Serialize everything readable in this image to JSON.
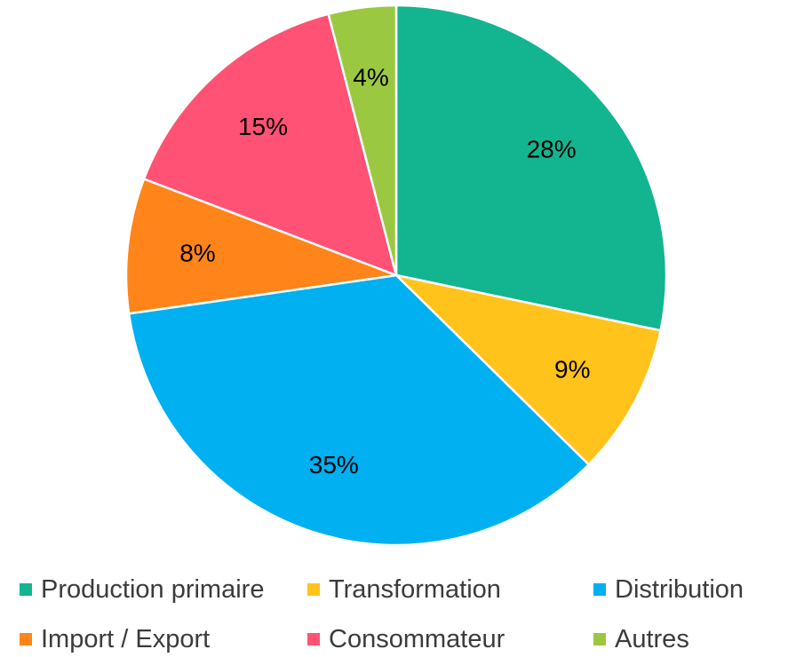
{
  "chart_data": {
    "type": "pie",
    "title": "",
    "legend_placement": "bottom",
    "slices": [
      {
        "name": "Production primaire",
        "value": 28,
        "label": "28%",
        "color": "#12B58F"
      },
      {
        "name": "Transformation",
        "value": 9,
        "label": "9%",
        "color": "#FFC31C"
      },
      {
        "name": "Distribution",
        "value": 35,
        "label": "35%",
        "color": "#00B0F0"
      },
      {
        "name": "Import / Export",
        "value": 8,
        "label": "8%",
        "color": "#FF8419"
      },
      {
        "name": "Consommateur",
        "value": 15,
        "label": "15%",
        "color": "#FF5274"
      },
      {
        "name": "Autres",
        "value": 4,
        "label": "4%",
        "color": "#9BC841"
      }
    ]
  }
}
